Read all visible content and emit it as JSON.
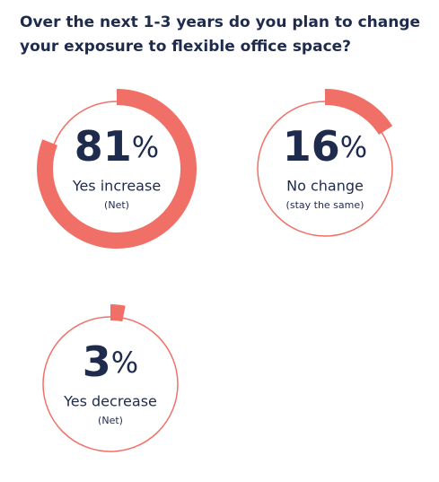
{
  "chart_data": {
    "type": "gauge",
    "title": "Over the next 1-3 years do you plan to change your exposure to flexible office space?",
    "categories": [
      "Yes increase",
      "No change",
      "Yes decrease"
    ],
    "notes": [
      "(Net)",
      "(stay the same)",
      "(Net)"
    ],
    "values": [
      81,
      16,
      3
    ],
    "value_labels": [
      "81%",
      "16%",
      "3%"
    ],
    "ylim": [
      0,
      100
    ],
    "color": "#f07067"
  }
}
